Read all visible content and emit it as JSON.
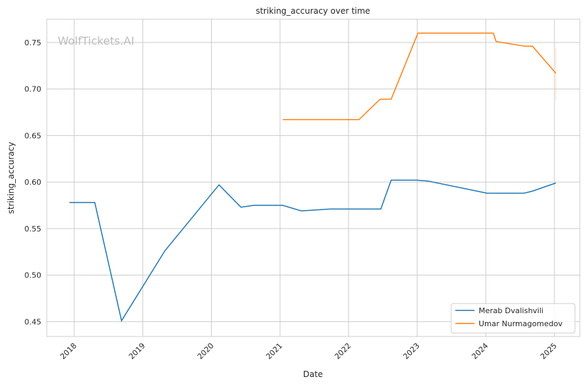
{
  "chart_data": {
    "type": "line",
    "title": "striking_accuracy over time",
    "xlabel": "Date",
    "ylabel": "striking_accuracy",
    "watermark": "WolfTickets.AI",
    "xlim": [
      2017.6,
      2025.37
    ],
    "ylim": [
      0.434,
      0.775
    ],
    "grid": true,
    "legend_position": "bottom-right",
    "x_ticks": [
      {
        "value": 2018,
        "label": "2018"
      },
      {
        "value": 2019,
        "label": "2019"
      },
      {
        "value": 2020,
        "label": "2020"
      },
      {
        "value": 2021,
        "label": "2021"
      },
      {
        "value": 2022,
        "label": "2022"
      },
      {
        "value": 2023,
        "label": "2023"
      },
      {
        "value": 2024,
        "label": "2024"
      },
      {
        "value": 2025,
        "label": "2025"
      }
    ],
    "y_ticks": [
      {
        "value": 0.45,
        "label": "0.45"
      },
      {
        "value": 0.5,
        "label": "0.50"
      },
      {
        "value": 0.55,
        "label": "0.55"
      },
      {
        "value": 0.6,
        "label": "0.60"
      },
      {
        "value": 0.65,
        "label": "0.65"
      },
      {
        "value": 0.7,
        "label": "0.70"
      },
      {
        "value": 0.75,
        "label": "0.75"
      }
    ],
    "series": [
      {
        "name": "Merab Dvalishvili",
        "color": "#1f77b4",
        "x": [
          2017.93,
          2018.3,
          2018.69,
          2019.32,
          2020.11,
          2020.43,
          2020.62,
          2021.04,
          2021.31,
          2021.73,
          2022.47,
          2022.62,
          2023.0,
          2023.16,
          2024.02,
          2024.55,
          2024.67,
          2025.02
        ],
        "y": [
          0.578,
          0.578,
          0.451,
          0.526,
          0.597,
          0.573,
          0.575,
          0.575,
          0.569,
          0.571,
          0.571,
          0.602,
          0.602,
          0.601,
          0.588,
          0.588,
          0.59,
          0.599
        ]
      },
      {
        "name": "Umar Nurmagomedov",
        "color": "#ff7f0e",
        "x": [
          2021.04,
          2022.15,
          2022.46,
          2022.62,
          2023.01,
          2024.11,
          2024.15,
          2024.57,
          2024.68,
          2025.02
        ],
        "y": [
          0.667,
          0.667,
          0.689,
          0.689,
          0.76,
          0.76,
          0.751,
          0.746,
          0.746,
          0.717
        ],
        "band_at_last": [
          0.688,
          0.745
        ]
      }
    ]
  }
}
